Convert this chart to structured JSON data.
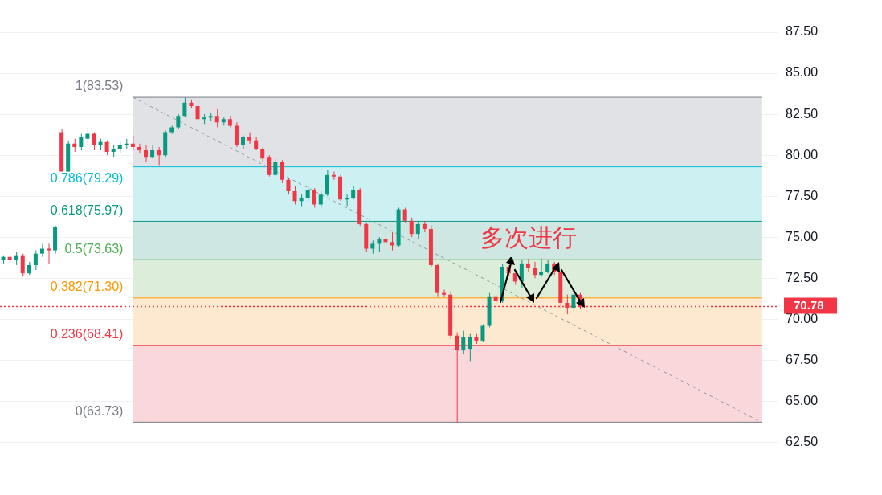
{
  "chart_data": {
    "type": "candlestick",
    "categories": [
      null,
      null,
      null,
      null,
      null,
      null,
      null,
      null,
      null,
      null,
      null,
      null,
      null,
      null,
      null,
      null,
      null,
      null,
      null,
      null,
      null,
      null,
      null,
      null,
      null,
      null,
      null,
      null,
      null,
      null,
      null,
      null,
      null,
      null,
      null,
      null,
      null,
      null,
      null,
      null,
      null,
      null,
      null,
      null,
      null,
      null,
      null,
      null,
      null,
      null,
      null,
      null,
      null,
      null,
      null,
      null,
      null,
      null,
      null,
      null,
      null,
      null,
      null,
      null,
      null,
      null,
      null,
      null,
      null,
      null,
      null,
      null,
      null,
      null,
      null,
      null,
      null,
      null,
      null,
      null,
      null,
      null,
      null,
      null,
      null,
      null,
      null,
      null,
      null,
      null,
      null,
      null,
      null,
      null,
      null,
      null,
      null,
      null,
      null,
      null,
      null,
      null,
      null,
      null,
      null,
      null,
      null,
      null,
      null,
      null,
      null,
      null,
      null,
      null,
      null,
      null,
      null,
      null,
      null,
      null
    ],
    "ohlc": [
      [
        73.6,
        73.9,
        73.4,
        73.8
      ],
      [
        73.8,
        74.0,
        73.5,
        73.6
      ],
      [
        73.6,
        74.1,
        73.3,
        73.9
      ],
      [
        73.9,
        74.0,
        72.6,
        72.8
      ],
      [
        72.8,
        73.5,
        72.7,
        73.3
      ],
      [
        73.3,
        74.2,
        73.0,
        74.0
      ],
      [
        74.0,
        74.6,
        73.8,
        74.3
      ],
      [
        74.3,
        74.6,
        73.4,
        74.2
      ],
      [
        74.2,
        75.7,
        74.0,
        75.6
      ],
      [
        81.4,
        81.6,
        79.0,
        79.0
      ],
      [
        79.0,
        80.9,
        79.0,
        80.7
      ],
      [
        80.7,
        81.0,
        80.2,
        80.5
      ],
      [
        80.5,
        81.3,
        80.3,
        81.1
      ],
      [
        81.0,
        81.7,
        80.6,
        81.3
      ],
      [
        81.3,
        81.4,
        80.3,
        80.6
      ],
      [
        80.6,
        81.0,
        80.3,
        80.8
      ],
      [
        80.8,
        80.9,
        80.0,
        80.2
      ],
      [
        80.2,
        80.6,
        79.9,
        80.4
      ],
      [
        80.4,
        80.8,
        80.1,
        80.6
      ],
      [
        80.6,
        81.0,
        80.4,
        80.7
      ],
      [
        80.7,
        81.2,
        80.3,
        80.5
      ],
      [
        80.5,
        80.7,
        80.1,
        80.3
      ],
      [
        80.3,
        80.6,
        79.6,
        79.9
      ],
      [
        79.9,
        80.6,
        79.8,
        80.3
      ],
      [
        80.3,
        80.5,
        79.4,
        80.0
      ],
      [
        80.0,
        81.5,
        79.9,
        81.4
      ],
      [
        81.4,
        81.8,
        81.3,
        81.7
      ],
      [
        81.7,
        82.5,
        81.6,
        82.4
      ],
      [
        82.4,
        83.5,
        82.3,
        83.2
      ],
      [
        83.2,
        83.4,
        82.9,
        83.0
      ],
      [
        83.0,
        83.4,
        82.0,
        82.2
      ],
      [
        82.2,
        82.5,
        81.9,
        82.3
      ],
      [
        82.3,
        82.6,
        82.1,
        82.4
      ],
      [
        82.4,
        82.8,
        81.7,
        82.0
      ],
      [
        82.0,
        82.3,
        81.8,
        82.2
      ],
      [
        82.2,
        82.4,
        81.7,
        81.8
      ],
      [
        81.8,
        82.0,
        80.5,
        80.6
      ],
      [
        80.6,
        81.2,
        80.4,
        81.1
      ],
      [
        81.1,
        81.4,
        80.7,
        80.9
      ],
      [
        80.9,
        81.1,
        80.3,
        80.4
      ],
      [
        80.4,
        80.5,
        79.6,
        79.8
      ],
      [
        79.9,
        80.0,
        78.7,
        78.8
      ],
      [
        78.8,
        79.8,
        78.7,
        79.6
      ],
      [
        79.6,
        79.7,
        78.3,
        78.5
      ],
      [
        78.5,
        78.6,
        77.6,
        77.8
      ],
      [
        77.8,
        78.1,
        77.0,
        77.2
      ],
      [
        77.2,
        77.6,
        76.9,
        77.4
      ],
      [
        77.4,
        78.1,
        77.2,
        77.9
      ],
      [
        77.9,
        78.0,
        76.8,
        77.0
      ],
      [
        77.0,
        77.8,
        76.8,
        77.6
      ],
      [
        77.6,
        79.1,
        77.5,
        78.8
      ],
      [
        78.8,
        79.0,
        78.5,
        78.7
      ],
      [
        78.7,
        78.8,
        77.2,
        77.3
      ],
      [
        77.3,
        77.6,
        76.9,
        77.4
      ],
      [
        77.4,
        78.1,
        77.3,
        77.9
      ],
      [
        77.9,
        78.0,
        75.7,
        75.8
      ],
      [
        75.8,
        75.9,
        74.1,
        74.3
      ],
      [
        74.3,
        74.8,
        74.0,
        74.6
      ],
      [
        74.6,
        75.0,
        74.1,
        74.9
      ],
      [
        74.9,
        75.1,
        74.5,
        74.7
      ],
      [
        74.7,
        75.3,
        74.2,
        74.5
      ],
      [
        74.5,
        76.8,
        74.4,
        76.7
      ],
      [
        76.7,
        76.8,
        75.9,
        76.0
      ],
      [
        76.0,
        76.2,
        75.0,
        75.2
      ],
      [
        75.2,
        76.0,
        74.9,
        75.8
      ],
      [
        75.8,
        76.0,
        75.3,
        75.5
      ],
      [
        75.5,
        75.7,
        73.2,
        73.3
      ],
      [
        73.3,
        73.4,
        71.4,
        71.6
      ],
      [
        71.6,
        71.8,
        71.4,
        71.5
      ],
      [
        71.5,
        71.7,
        68.8,
        69.0
      ],
      [
        69.0,
        69.2,
        63.73,
        68.1
      ],
      [
        68.1,
        69.3,
        67.9,
        68.9
      ],
      [
        68.2,
        69.1,
        67.45,
        68.9
      ],
      [
        68.9,
        69.1,
        68.5,
        68.7
      ],
      [
        68.7,
        69.7,
        68.6,
        69.6
      ],
      [
        69.6,
        71.6,
        69.5,
        71.4
      ],
      [
        71.4,
        71.5,
        70.9,
        71.1
      ],
      [
        71.1,
        73.4,
        71.0,
        73.2
      ],
      [
        73.2,
        73.3,
        72.6,
        72.8
      ],
      [
        72.8,
        72.9,
        72.1,
        72.3
      ],
      [
        72.3,
        73.6,
        71.9,
        73.4
      ],
      [
        73.4,
        73.7,
        72.9,
        73.1
      ],
      [
        73.1,
        73.5,
        72.5,
        72.7
      ],
      [
        72.7,
        73.7,
        72.6,
        72.9
      ],
      [
        72.9,
        73.6,
        72.8,
        73.4
      ],
      [
        73.4,
        73.5,
        72.7,
        72.9
      ],
      [
        72.9,
        73.0,
        70.7,
        71.0
      ],
      [
        71.0,
        71.5,
        70.3,
        70.7
      ],
      [
        70.7,
        71.6,
        70.4,
        71.5
      ],
      [
        71.5,
        71.6,
        70.6,
        70.78
      ],
      null,
      null,
      null,
      null,
      null,
      null,
      null,
      null,
      null,
      null,
      null,
      null,
      null,
      null,
      null,
      null,
      null,
      null,
      null,
      null,
      null,
      null,
      null,
      null,
      null,
      null,
      null,
      null,
      null,
      null
    ],
    "colors": [
      "#089981",
      "#f23645",
      "#089981",
      "#f23645",
      "#089981",
      "#089981",
      "#089981",
      "#f23645",
      "#089981",
      "#f23645",
      "#089981",
      "#f23645",
      "#089981",
      "#089981",
      "#f23645",
      "#089981",
      "#f23645",
      "#089981",
      "#089981",
      "#089981",
      "#f23645",
      "#f23645",
      "#f23645",
      "#089981",
      "#f23645",
      "#089981",
      "#089981",
      "#089981",
      "#089981",
      "#f23645",
      "#f23645",
      "#089981",
      "#089981",
      "#f23645",
      "#089981",
      "#f23645",
      "#f23645",
      "#089981",
      "#f23645",
      "#f23645",
      "#f23645",
      "#f23645",
      "#089981",
      "#f23645",
      "#f23645",
      "#f23645",
      "#089981",
      "#089981",
      "#f23645",
      "#089981",
      "#089981",
      "#f23645",
      "#f23645",
      "#089981",
      "#089981",
      "#f23645",
      "#f23645",
      "#089981",
      "#089981",
      "#f23645",
      "#f23645",
      "#089981",
      "#f23645",
      "#f23645",
      "#089981",
      "#f23645",
      "#f23645",
      "#f23645",
      "#f23645",
      "#f23645",
      "#f23645",
      "#089981",
      "#089981",
      "#f23645",
      "#089981",
      "#089981",
      "#f23645",
      "#089981",
      "#f23645",
      "#f23645",
      "#089981",
      "#f23645",
      "#f23645",
      "#089981",
      "#089981",
      "#f23645",
      "#f23645",
      "#f23645",
      "#089981",
      "#f23645",
      null,
      null,
      null,
      null,
      null,
      null,
      null,
      null,
      null,
      null,
      null,
      null,
      null,
      null,
      null,
      null,
      null,
      null,
      null,
      null,
      null,
      null,
      null,
      null,
      null,
      null,
      null,
      null,
      null,
      null
    ],
    "series": [
      {
        "type": "line",
        "color": "#9598a1",
        "line_style": "dashed",
        "values": [
          null,
          null,
          null,
          null,
          null,
          null,
          null,
          null,
          null,
          null,
          null,
          null,
          null,
          null,
          null,
          null,
          null,
          null,
          null,
          null,
          83.53,
          null,
          null,
          null,
          null,
          null,
          null,
          null,
          null,
          null,
          null,
          null,
          null,
          null,
          null,
          null,
          null,
          null,
          null,
          null,
          null,
          null,
          null,
          null,
          null,
          null,
          null,
          null,
          null,
          null,
          null,
          null,
          null,
          null,
          null,
          null,
          null,
          null,
          null,
          null,
          null,
          null,
          null,
          null,
          null,
          null,
          null,
          null,
          null,
          null,
          null,
          null,
          null,
          null,
          null,
          null,
          null,
          null,
          null,
          null,
          null,
          null,
          null,
          null,
          null,
          null,
          null,
          null,
          null,
          null,
          null,
          null,
          null,
          null,
          null,
          null,
          null,
          null,
          null,
          null,
          null,
          null,
          null,
          null,
          null,
          null,
          null,
          null,
          null,
          null,
          null,
          null,
          null,
          null,
          null,
          null,
          null,
          63.73,
          null,
          null
        ]
      }
    ],
    "ylim": [
      60.25,
      88.5
    ],
    "yticks": [
      {
        "value": 62.5,
        "label": "62.50"
      },
      {
        "value": 65,
        "label": "65.00"
      },
      {
        "value": 67.5,
        "label": "67.50"
      },
      {
        "value": 70,
        "label": "70.00"
      },
      {
        "value": 72.5,
        "label": "72.50"
      },
      {
        "value": 75,
        "label": "75.00"
      },
      {
        "value": 77.5,
        "label": "77.50"
      },
      {
        "value": 80,
        "label": "80.00"
      },
      {
        "value": 82.5,
        "label": "82.50"
      },
      {
        "value": 85,
        "label": "85.00"
      },
      {
        "value": 87.5,
        "label": "87.50"
      }
    ],
    "grid": "y",
    "bands": [
      {
        "axis": "y",
        "from": 79.29,
        "to": 83.53,
        "color": "#e1e2e6"
      },
      {
        "axis": "y",
        "from": 75.97,
        "to": 79.29,
        "color": "#cdf0f3"
      },
      {
        "axis": "y",
        "from": 73.63,
        "to": 75.97,
        "color": "#cfe7e2"
      },
      {
        "axis": "y",
        "from": 71.3,
        "to": 73.63,
        "color": "#dcedd9"
      },
      {
        "axis": "y",
        "from": 68.41,
        "to": 71.3,
        "color": "#fde9d0"
      },
      {
        "axis": "y",
        "from": 63.73,
        "to": 68.41,
        "color": "#f9d7da"
      }
    ],
    "ref_lines": [
      {
        "axis": "y",
        "value": 83.53,
        "label": "1(83.53)",
        "color": "#787b86",
        "line_style": "solid"
      },
      {
        "axis": "y",
        "value": 79.29,
        "label": "0.786(79.29)",
        "color": "#00bcd4",
        "line_style": "solid"
      },
      {
        "axis": "y",
        "value": 75.97,
        "label": "0.618(75.97)",
        "color": "#089981",
        "line_style": "solid"
      },
      {
        "axis": "y",
        "value": 73.63,
        "label": "0.5(73.63)",
        "color": "#4caf50",
        "line_style": "solid"
      },
      {
        "axis": "y",
        "value": 71.3,
        "label": "0.382(71.30)",
        "color": "#ff9800",
        "line_style": "solid"
      },
      {
        "axis": "y",
        "value": 68.41,
        "label": "0.236(68.41)",
        "color": "#f23645",
        "line_style": "solid"
      },
      {
        "axis": "y",
        "value": 63.73,
        "label": "0(63.73)",
        "color": "#787b86",
        "line_style": "solid"
      },
      {
        "axis": "y",
        "value": 70.78,
        "label": "70.78",
        "color": "#f23645",
        "line_style": "dotted"
      }
    ],
    "annotations": [
      "多次进行"
    ],
    "legend": false
  }
}
